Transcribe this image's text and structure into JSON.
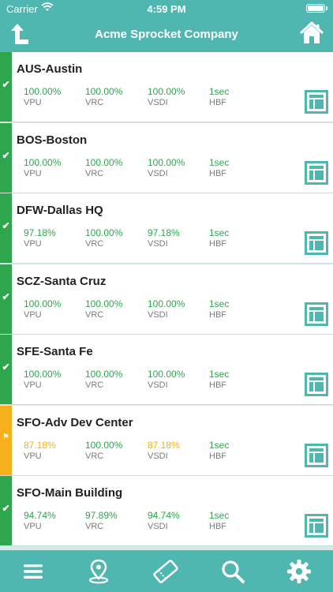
{
  "status_bar": {
    "carrier": "Carrier",
    "time": "4:59 PM"
  },
  "nav": {
    "title": "Acme Sprocket Company",
    "back_icon": "upload-arrow-icon",
    "home_icon": "home-icon"
  },
  "metric_labels": {
    "vpu": "VPU",
    "vrc": "VRC",
    "vsdi": "VSDI",
    "hbf": "HBF"
  },
  "colors": {
    "accent": "#4fb6b0",
    "ok": "#2ea64d",
    "warn": "#f5b01b"
  },
  "sites": [
    {
      "name": "AUS-Austin",
      "status": "ok",
      "vpu": "100.00%",
      "vrc": "100.00%",
      "vsdi": "100.00%",
      "hbf": "1sec"
    },
    {
      "name": "BOS-Boston",
      "status": "ok",
      "vpu": "100.00%",
      "vrc": "100.00%",
      "vsdi": "100.00%",
      "hbf": "1sec"
    },
    {
      "name": "DFW-Dallas HQ",
      "status": "ok",
      "vpu": "97.18%",
      "vrc": "100.00%",
      "vsdi": "97.18%",
      "hbf": "1sec"
    },
    {
      "name": "SCZ-Santa Cruz",
      "status": "ok",
      "vpu": "100.00%",
      "vrc": "100.00%",
      "vsdi": "100.00%",
      "hbf": "1sec"
    },
    {
      "name": "SFE-Santa Fe",
      "status": "ok",
      "vpu": "100.00%",
      "vrc": "100.00%",
      "vsdi": "100.00%",
      "hbf": "1sec"
    },
    {
      "name": "SFO-Adv Dev Center",
      "status": "warn",
      "vpu": "87.18%",
      "vrc": "100.00%",
      "vsdi": "87.18%",
      "hbf": "1sec"
    },
    {
      "name": "SFO-Main Building",
      "status": "ok",
      "vpu": "94.74%",
      "vrc": "97.89%",
      "vsdi": "94.74%",
      "hbf": "1sec"
    }
  ],
  "tabs": [
    {
      "icon": "menu-icon"
    },
    {
      "icon": "map-pin-icon"
    },
    {
      "icon": "ticket-icon"
    },
    {
      "icon": "search-icon"
    },
    {
      "icon": "gear-icon"
    }
  ]
}
